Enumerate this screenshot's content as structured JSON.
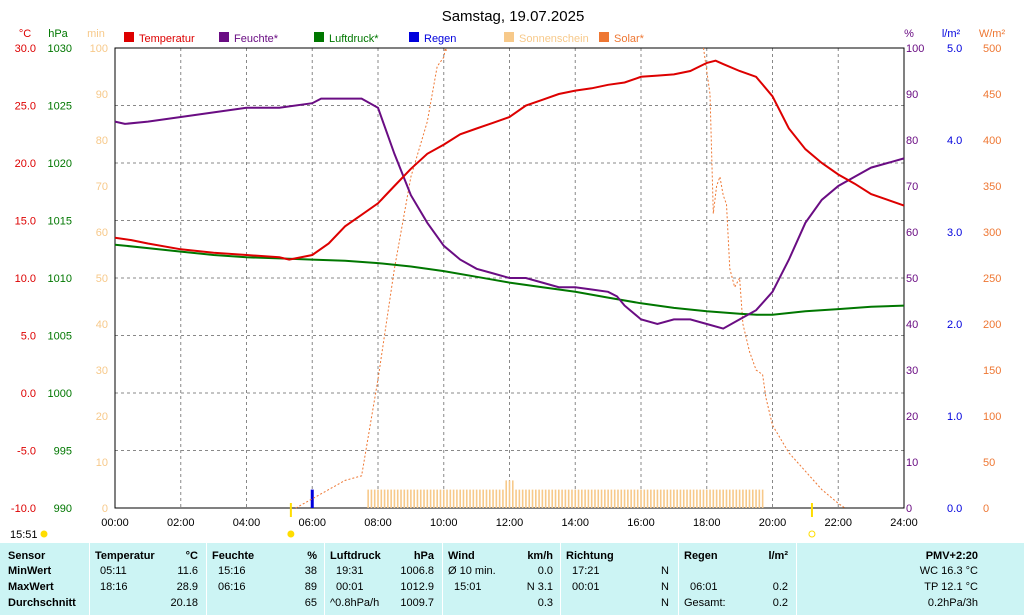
{
  "chart_data": {
    "type": "line",
    "title": "Samstag, 19.07.2025",
    "legend": [
      "Temperatur",
      "Feuchte*",
      "Luftdruck*",
      "Regen",
      "Sonnenschein",
      "Solar*"
    ],
    "legend_colors": [
      "#dd0000",
      "#6a0d83",
      "#007700",
      "#0000dd",
      "#f7c98a",
      "#ee7733"
    ],
    "legend_position": "top",
    "grid": true,
    "x_ticks": [
      "00:00",
      "02:00",
      "04:00",
      "06:00",
      "08:00",
      "10:00",
      "12:00",
      "14:00",
      "16:00",
      "18:00",
      "20:00",
      "22:00",
      "24:00"
    ],
    "x_range_hours": [
      0,
      24
    ],
    "axes": {
      "temperature": {
        "unit": "°C",
        "color": "#dd0000",
        "range": [
          -10,
          30
        ],
        "ticks": [
          "30.0",
          "25.0",
          "20.0",
          "15.0",
          "10.0",
          "5.0",
          "0.0",
          "-5.0",
          "-10.0"
        ]
      },
      "pressure": {
        "unit": "hPa",
        "color": "#007700",
        "range": [
          990,
          1030
        ],
        "ticks": [
          "1030",
          "1025",
          "1020",
          "1015",
          "1010",
          "1005",
          "1000",
          "995",
          "990"
        ]
      },
      "sunshine": {
        "unit": "min",
        "color": "#f7c98a",
        "range": [
          0,
          100
        ],
        "ticks": [
          "100",
          "90",
          "80",
          "70",
          "60",
          "50",
          "40",
          "30",
          "20",
          "10",
          "0"
        ]
      },
      "humidity": {
        "unit": "%",
        "color": "#6a0d83",
        "range": [
          0,
          100
        ],
        "ticks": [
          "100",
          "90",
          "80",
          "70",
          "60",
          "50",
          "40",
          "30",
          "20",
          "10",
          "0"
        ]
      },
      "rain": {
        "unit": "l/m²",
        "color": "#0000dd",
        "range": [
          0,
          5
        ],
        "ticks": [
          "5.0",
          "4.0",
          "3.0",
          "2.0",
          "1.0",
          "0.0"
        ]
      },
      "solar": {
        "unit": "W/m²",
        "color": "#ee7733",
        "range": [
          0,
          500
        ],
        "ticks": [
          "500",
          "450",
          "400",
          "350",
          "300",
          "250",
          "200",
          "150",
          "100",
          "50",
          "0"
        ]
      }
    },
    "series": [
      {
        "name": "Temperatur",
        "axis": "temperature",
        "x": [
          0,
          0.5,
          1,
          2,
          3,
          4,
          5,
          5.3,
          6,
          6.5,
          7,
          7.5,
          8,
          8.5,
          9,
          9.5,
          10,
          10.5,
          11,
          11.5,
          12,
          12.5,
          13,
          13.5,
          14,
          14.5,
          15,
          15.5,
          16,
          16.5,
          17,
          17.5,
          18,
          18.27,
          18.5,
          19,
          19.5,
          20,
          20.5,
          21,
          21.5,
          22,
          22.5,
          23,
          23.5,
          24
        ],
        "y": [
          13.5,
          13.3,
          13.0,
          12.5,
          12.2,
          12.0,
          11.8,
          11.6,
          12.0,
          13.0,
          14.5,
          15.5,
          16.5,
          18.0,
          19.5,
          20.8,
          21.6,
          22.5,
          23.0,
          23.5,
          24.0,
          25.0,
          25.5,
          26.0,
          26.3,
          26.5,
          26.8,
          27.0,
          27.5,
          27.6,
          27.7,
          28.0,
          28.7,
          28.9,
          28.6,
          28.0,
          27.5,
          25.8,
          23.0,
          21.2,
          20.0,
          19.0,
          18.2,
          17.3,
          16.8,
          16.3
        ]
      },
      {
        "name": "Feuchte*",
        "axis": "humidity",
        "x": [
          0,
          0.3,
          1,
          2,
          3,
          4,
          5,
          6,
          6.27,
          7,
          7.5,
          8,
          8.5,
          9,
          9.5,
          10,
          10.5,
          11,
          11.5,
          12,
          12.5,
          13,
          13.5,
          14,
          14.5,
          15,
          15.27,
          15.5,
          16,
          16.5,
          17,
          17.5,
          18,
          18.5,
          19,
          19.5,
          20,
          20.5,
          21,
          21.5,
          22,
          22.5,
          23,
          23.5,
          24
        ],
        "y": [
          84,
          83.5,
          84,
          85,
          86,
          87,
          87,
          88,
          89,
          89,
          89,
          87,
          77,
          68,
          62,
          57,
          54,
          52,
          51,
          50,
          50,
          49,
          48,
          48,
          47.5,
          47,
          46,
          44,
          41,
          40,
          41,
          41,
          40,
          39,
          41,
          43,
          47,
          54,
          62,
          67,
          70,
          72,
          74,
          75,
          76
        ]
      },
      {
        "name": "Luftdruck*",
        "axis": "pressure",
        "x": [
          0,
          1,
          2,
          3,
          4,
          5,
          6,
          7,
          8,
          9,
          10,
          11,
          12,
          13,
          14,
          15,
          16,
          17,
          18,
          19,
          19.52,
          20,
          21,
          22,
          23,
          24
        ],
        "y": [
          1012.9,
          1012.6,
          1012.3,
          1012.0,
          1011.8,
          1011.7,
          1011.6,
          1011.5,
          1011.3,
          1011.0,
          1010.6,
          1010.1,
          1009.6,
          1009.2,
          1008.8,
          1008.3,
          1007.8,
          1007.4,
          1007.1,
          1006.9,
          1006.8,
          1006.8,
          1007.1,
          1007.3,
          1007.5,
          1007.6
        ]
      },
      {
        "name": "Solar*",
        "axis": "solar",
        "x": [
          5.5,
          6,
          6.5,
          7,
          7.5,
          8,
          8.5,
          9,
          9.5,
          9.8,
          10,
          10.05,
          10.1
        ],
        "y": [
          0,
          10,
          20,
          30,
          35,
          140,
          260,
          360,
          420,
          480,
          490,
          500,
          495
        ],
        "x2": [
          17.9,
          18.1,
          18.2,
          18.3,
          18.4,
          18.5,
          18.6,
          18.7,
          18.85,
          19,
          19.1,
          19.3,
          19.5,
          19.7,
          19.8,
          20,
          20.5,
          21,
          21.5,
          22,
          22.2
        ],
        "y2": [
          500,
          450,
          320,
          350,
          360,
          340,
          330,
          260,
          240,
          250,
          200,
          170,
          150,
          145,
          120,
          90,
          60,
          40,
          20,
          5,
          0
        ]
      }
    ],
    "rain": {
      "x": [
        6.0
      ],
      "y": [
        0.2
      ]
    },
    "sunshine": {
      "x_start": 7.7,
      "x_end": 19.72,
      "minutes_per_interval": 4,
      "peak_x": 12.0,
      "peak_minutes": 6
    },
    "markers": {
      "left_time": "15:51",
      "right_time": "",
      "sunrise_x": 5.35,
      "sunset_x": 21.2,
      "marker_color": "#ffdd00"
    }
  },
  "summary": {
    "row_labels": [
      "Sensor",
      "MinWert",
      "MaxWert",
      "Durchschnitt"
    ],
    "temperature": {
      "header": "Temperatur",
      "unit": "°C",
      "min_time": "05:11",
      "min": "11.6",
      "max_time": "18:16",
      "max": "28.9",
      "avg": "20.18"
    },
    "humidity": {
      "header": "Feuchte",
      "unit": "%",
      "min_time": "15:16",
      "min": "38",
      "max_time": "06:16",
      "max": "89",
      "avg": "65"
    },
    "pressure": {
      "header": "Luftdruck",
      "unit": "hPa",
      "min_time": "19:31",
      "min": "1006.8",
      "max_time": "00:01",
      "max": "1012.9",
      "avg_label": "^0.8hPa/h",
      "avg": "1009.7"
    },
    "wind": {
      "header": "Wind",
      "unit": "km/h",
      "min_label": "Ø 10 min.",
      "min": "0.0",
      "max_label": "15:01",
      "max": "N 3.1",
      "avg": "0.3"
    },
    "direction": {
      "header": "Richtung",
      "min_time": "17:21",
      "min": "N",
      "max_time": "00:01",
      "max": "N",
      "avg": "N"
    },
    "rain": {
      "header": "Regen",
      "unit": "l/m²",
      "max_time": "06:01",
      "max": "0.2",
      "total_label": "Gesamt:",
      "total": "0.2"
    },
    "pmv": {
      "header": "PMV+2:20",
      "wc": "WC 16.3 °C",
      "tp": "TP 12.1 °C",
      "trend": "0.2hPa/3h"
    }
  }
}
